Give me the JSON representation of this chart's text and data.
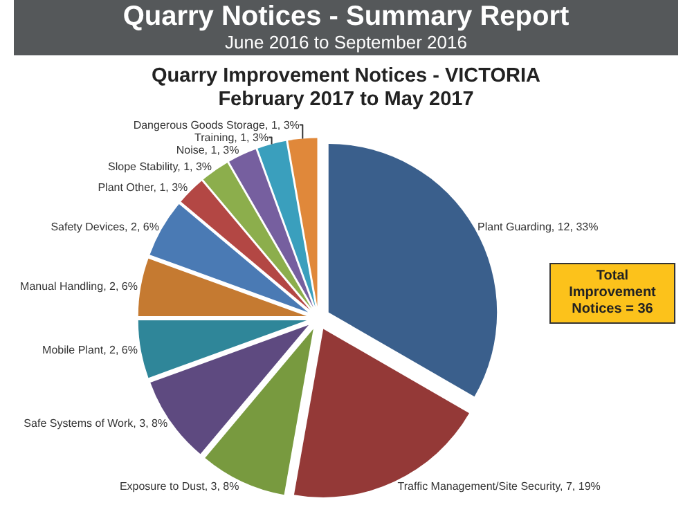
{
  "chart_data": {
    "type": "pie",
    "title": "Quarry Notices - Summary Report",
    "subtitle": "June 2016 to September 2016",
    "annotations": [
      "Quarry Improvement Notices - VICTORIA",
      "February 2017 to May 2017",
      "Total Improvement Notices = 36"
    ],
    "categories": [
      "Plant Guarding",
      "Traffic Management/Site Security",
      "Exposure to Dust",
      "Safe Systems of Work",
      "Mobile Plant",
      "Manual Handling",
      "Safety Devices",
      "Plant Other",
      "Slope Stability",
      "Noise",
      "Training",
      "Dangerous Goods Storage"
    ],
    "values": [
      12,
      7,
      3,
      3,
      2,
      2,
      2,
      1,
      1,
      1,
      1,
      1
    ],
    "colors": [
      "#3a5f8c",
      "#943937",
      "#789a3f",
      "#5e4a80",
      "#2f8699",
      "#c57a31",
      "#4a7ab4",
      "#b34744",
      "#8cae4c",
      "#765f9f",
      "#3a9fbd",
      "#e0883a"
    ],
    "value_labels": [
      "12, 33%",
      "7, 19%",
      "3, 8%",
      "3, 8%",
      "2, 6%",
      "2, 6%",
      "2, 6%",
      "1, 3%",
      "1, 3%",
      "1, 3%",
      "1, 3%",
      "1, 3%"
    ],
    "legend": false
  }
}
